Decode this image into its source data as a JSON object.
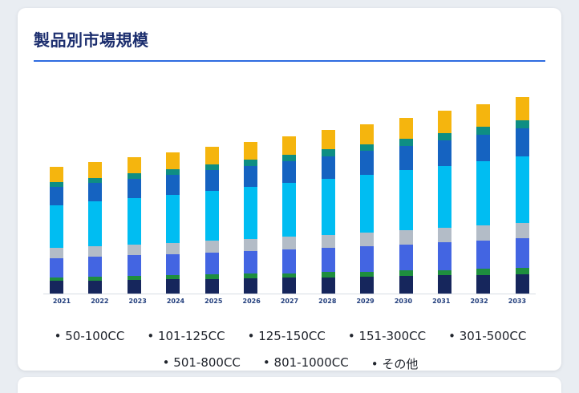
{
  "page": {
    "background_color": "#e9edf2"
  },
  "card": {
    "background_color": "#ffffff"
  },
  "header": {
    "title": "製品別市場規模",
    "title_color": "#1c2e6e",
    "rule_color": "#2f6ce0"
  },
  "chart_data": {
    "type": "bar",
    "stacked": true,
    "title": "製品別市場規模",
    "xlabel": "",
    "ylabel": "",
    "y_axis_visible": false,
    "grid": false,
    "legend_position": "bottom",
    "legend_bullet": "•",
    "categories": [
      "2021",
      "2022",
      "2023",
      "2024",
      "2025",
      "2026",
      "2027",
      "2028",
      "2029",
      "2030",
      "2031",
      "2032",
      "2033"
    ],
    "series": [
      {
        "name": "50-100CC",
        "color": "#16265c",
        "values": [
          10.0,
          10.4,
          10.8,
          11.2,
          11.6,
          12.0,
          12.5,
          12.9,
          13.4,
          13.9,
          14.4,
          14.9,
          15.5
        ]
      },
      {
        "name": "101-125CC",
        "color": "#1e8e3e",
        "values": [
          3.0,
          3.1,
          3.2,
          3.3,
          3.5,
          3.6,
          3.7,
          3.9,
          4.0,
          4.2,
          4.3,
          4.5,
          4.7
        ]
      },
      {
        "name": "125-150CC",
        "color": "#4365e2",
        "values": [
          15.0,
          15.6,
          16.1,
          16.7,
          17.4,
          18.0,
          18.7,
          19.4,
          20.1,
          20.8,
          21.6,
          22.4,
          23.3
        ]
      },
      {
        "name": "151-300CC",
        "color": "#b3bcc7",
        "values": [
          8.0,
          8.3,
          8.6,
          8.9,
          9.3,
          9.6,
          10.0,
          10.3,
          10.7,
          11.1,
          11.5,
          12.0,
          12.4
        ]
      },
      {
        "name": "301-500CC",
        "color": "#00bdf2",
        "values": [
          34.0,
          35.3,
          36.6,
          37.9,
          39.3,
          40.8,
          42.3,
          43.9,
          45.5,
          47.2,
          49.0,
          50.8,
          52.7
        ]
      },
      {
        "name": "501-800CC",
        "color": "#1563c1",
        "values": [
          14.0,
          14.5,
          15.1,
          15.6,
          16.2,
          16.8,
          17.4,
          18.1,
          18.7,
          19.4,
          20.2,
          20.9,
          21.7
        ]
      },
      {
        "name": "801-1000CC",
        "color": "#0e8e83",
        "values": [
          4.0,
          4.1,
          4.3,
          4.5,
          4.6,
          4.8,
          5.0,
          5.2,
          5.4,
          5.6,
          5.8,
          6.0,
          6.2
        ]
      },
      {
        "name": "その他",
        "color": "#f5b50e",
        "values": [
          12.0,
          12.4,
          12.9,
          13.4,
          13.9,
          14.4,
          14.9,
          15.5,
          16.1,
          16.7,
          17.3,
          17.9,
          18.6
        ]
      }
    ]
  }
}
